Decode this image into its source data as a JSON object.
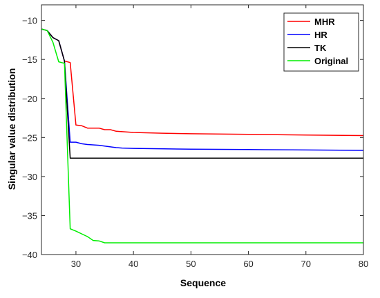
{
  "chart_data": {
    "type": "line",
    "xlabel": "Sequence",
    "ylabel": "Singular value distribution",
    "xlim": [
      24,
      80
    ],
    "ylim": [
      -40,
      -8
    ],
    "xticks": [
      30,
      40,
      50,
      60,
      70,
      80
    ],
    "yticks": [
      -10,
      -15,
      -20,
      -25,
      -30,
      -35,
      -40
    ],
    "grid": false,
    "legend": "top-right",
    "series": [
      {
        "name": "MHR",
        "color": "#ff0000",
        "points": [
          [
            24,
            -11.1
          ],
          [
            25,
            -11.3
          ],
          [
            26,
            -12.2
          ],
          [
            27,
            -12.6
          ],
          [
            28,
            -15.2
          ],
          [
            29,
            -15.4
          ],
          [
            30,
            -23.4
          ],
          [
            31,
            -23.5
          ],
          [
            32,
            -23.8
          ],
          [
            34,
            -23.8
          ],
          [
            35,
            -24.0
          ],
          [
            36,
            -24.0
          ],
          [
            37,
            -24.2
          ],
          [
            40,
            -24.35
          ],
          [
            45,
            -24.45
          ],
          [
            50,
            -24.52
          ],
          [
            60,
            -24.6
          ],
          [
            70,
            -24.68
          ],
          [
            80,
            -24.75
          ]
        ]
      },
      {
        "name": "HR",
        "color": "#0000ff",
        "points": [
          [
            24,
            -11.1
          ],
          [
            25,
            -11.3
          ],
          [
            26,
            -12.2
          ],
          [
            27,
            -12.6
          ],
          [
            28,
            -15.2
          ],
          [
            29,
            -25.6
          ],
          [
            30,
            -25.6
          ],
          [
            31,
            -25.8
          ],
          [
            32,
            -25.9
          ],
          [
            34,
            -26.0
          ],
          [
            35,
            -26.1
          ],
          [
            37,
            -26.3
          ],
          [
            38,
            -26.35
          ],
          [
            40,
            -26.4
          ],
          [
            50,
            -26.5
          ],
          [
            60,
            -26.55
          ],
          [
            70,
            -26.6
          ],
          [
            80,
            -26.65
          ]
        ]
      },
      {
        "name": "TK",
        "color": "#000000",
        "points": [
          [
            24,
            -11.1
          ],
          [
            25,
            -11.3
          ],
          [
            26,
            -12.2
          ],
          [
            27,
            -12.6
          ],
          [
            28,
            -15.2
          ],
          [
            29,
            -27.65
          ],
          [
            80,
            -27.65
          ]
        ]
      },
      {
        "name": "Original",
        "color": "#00ee00",
        "points": [
          [
            24,
            -11.1
          ],
          [
            25,
            -11.3
          ],
          [
            26,
            -12.8
          ],
          [
            27,
            -15.3
          ],
          [
            28,
            -15.5
          ],
          [
            29,
            -36.7
          ],
          [
            30,
            -37.0
          ],
          [
            32,
            -37.7
          ],
          [
            33,
            -38.2
          ],
          [
            34,
            -38.25
          ],
          [
            35,
            -38.5
          ],
          [
            40,
            -38.5
          ],
          [
            50,
            -38.5
          ],
          [
            60,
            -38.5
          ],
          [
            70,
            -38.5
          ],
          [
            80,
            -38.5
          ]
        ]
      }
    ]
  }
}
